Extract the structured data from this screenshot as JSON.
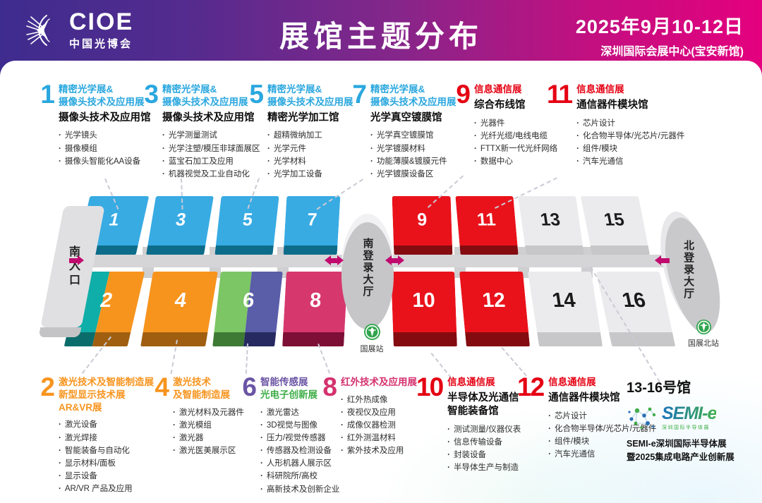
{
  "header": {
    "logo_text": "CIOE",
    "logo_sub": "中国光博会",
    "title": "展馆主题分布",
    "date": "2025年9月10-12日",
    "venue": "深圳国际会展中心(宝安新馆)"
  },
  "map": {
    "south_entrance": "南入口",
    "south_lobby": "南登录大厅",
    "north_lobby": "北登录大厅",
    "metro_south": "国展站",
    "metro_north": "国展北站",
    "halls_top": [
      {
        "num": "1",
        "colors": [
          "#38ABE3"
        ],
        "dark": [
          "#0C6C8A"
        ],
        "text": "#ffffff"
      },
      {
        "num": "3",
        "colors": [
          "#38ABE3"
        ],
        "dark": [
          "#0C6C8A"
        ],
        "text": "#ffffff"
      },
      {
        "num": "5",
        "colors": [
          "#38ABE3"
        ],
        "dark": [
          "#0C6C8A"
        ],
        "text": "#ffffff"
      },
      {
        "num": "7",
        "colors": [
          "#38ABE3"
        ],
        "dark": [
          "#0C6C8A"
        ],
        "text": "#ffffff"
      },
      {
        "num": "9",
        "colors": [
          "#E9121B"
        ],
        "dark": [
          "#840B10"
        ],
        "text": "#ffffff"
      },
      {
        "num": "11",
        "colors": [
          "#E9121B"
        ],
        "dark": [
          "#840B10"
        ],
        "text": "#ffffff"
      },
      {
        "num": "13",
        "colors": [
          "#EBEBED"
        ],
        "dark": [
          "#C7C7C9"
        ],
        "text": "#1b1b1b"
      },
      {
        "num": "15",
        "colors": [
          "#EBEBED"
        ],
        "dark": [
          "#C7C7C9"
        ],
        "text": "#1b1b1b"
      }
    ],
    "halls_bottom": [
      {
        "num": "2",
        "colors": [
          "#0FAEA8",
          "#F7941E"
        ],
        "split": [
          0.44,
          0.56
        ],
        "dark": [
          "#0B6D6B",
          "#A05F10"
        ],
        "text": "#ffffff"
      },
      {
        "num": "4",
        "colors": [
          "#F7941E"
        ],
        "dark": [
          "#A05F10"
        ],
        "text": "#ffffff"
      },
      {
        "num": "6",
        "colors": [
          "#7CC665",
          "#5A5DA8"
        ],
        "split": [
          0.5,
          0.5
        ],
        "dark": [
          "#3E7A33",
          "#262A60"
        ],
        "text": "#ffffff"
      },
      {
        "num": "8",
        "colors": [
          "#D6386E"
        ],
        "dark": [
          "#7D0E35"
        ],
        "text": "#ffffff"
      },
      {
        "num": "10",
        "colors": [
          "#E9121B"
        ],
        "dark": [
          "#840B10"
        ],
        "text": "#ffffff"
      },
      {
        "num": "12",
        "colors": [
          "#E9121B"
        ],
        "dark": [
          "#840B10"
        ],
        "text": "#ffffff"
      },
      {
        "num": "14",
        "colors": [
          "#EBEBED"
        ],
        "dark": [
          "#C7C7C9"
        ],
        "text": "#1b1b1b"
      },
      {
        "num": "16",
        "colors": [
          "#EBEBED"
        ],
        "dark": [
          "#C7C7C9"
        ],
        "text": "#1b1b1b"
      }
    ]
  },
  "annotations_top": [
    {
      "num": "1",
      "color": "#2AA7DF",
      "title_lines": [
        "精密光学展&",
        "摄像头技术及应用展"
      ],
      "hall_name_lines": [
        "摄像头技术及应用馆"
      ],
      "bullets": [
        "光学镜头",
        "摄像模组",
        "摄像头智能化AA设备"
      ]
    },
    {
      "num": "3",
      "color": "#2AA7DF",
      "title_lines": [
        "精密光学展&",
        "摄像头技术及应用展"
      ],
      "hall_name_lines": [
        "摄像头技术及应用馆"
      ],
      "bullets": [
        "光学测量测试",
        "光学注塑/模压非球面展区",
        "蓝宝石加工及应用",
        "机器视觉及工业自动化"
      ]
    },
    {
      "num": "5",
      "color": "#2AA7DF",
      "title_lines": [
        "精密光学展&",
        "摄像头技术及应用展"
      ],
      "hall_name_lines": [
        "精密光学加工馆"
      ],
      "bullets": [
        "超精微纳加工",
        "光学元件",
        "光学材料",
        "光学加工设备"
      ]
    },
    {
      "num": "7",
      "color": "#2AA7DF",
      "title_lines": [
        "精密光学展&",
        "摄像头技术及应用展"
      ],
      "hall_name_lines": [
        "光学真空镀膜馆"
      ],
      "bullets": [
        "光学真空镀膜馆",
        "光学镀膜材料",
        "功能薄膜&镀膜元件",
        "光学镀膜设备区"
      ]
    },
    {
      "num": "9",
      "color": "#E50113",
      "title_lines": [
        "信息通信展"
      ],
      "hall_name_lines": [
        "综合布线馆"
      ],
      "bullets": [
        "光器件",
        "光纤光缆/电线电缆",
        "FTTX新一代光纤网络",
        "数据中心"
      ]
    },
    {
      "num": "11",
      "color": "#E50113",
      "title_lines": [
        "信息通信展"
      ],
      "hall_name_lines": [
        "通信器件模块馆"
      ],
      "bullets": [
        "芯片设计",
        "化合物半导体/光芯片/元器件",
        "组件/模块",
        "汽车光通信"
      ]
    }
  ],
  "annotations_bottom": [
    {
      "num": "2",
      "color": "#F7941E",
      "title_lines": [
        "激光技术及智能制造展",
        "新型显示技术展",
        "AR&VR展"
      ],
      "hall_name_lines": [],
      "bullets": [
        "激光设备",
        "激光焊接",
        "智能装备与自动化",
        "显示材料/面板",
        "显示设备",
        "AR/VR 产品及应用"
      ]
    },
    {
      "num": "4",
      "color": "#F7941E",
      "title_lines": [
        "激光技术",
        "及智能制造展"
      ],
      "hall_name_lines": [],
      "bullets": [
        "激光材料及元器件",
        "激光模组",
        "激光器",
        "激光医美展示区"
      ]
    },
    {
      "num": "6",
      "color": "#6B55A4",
      "title_lines": [
        "智能传感展",
        "光电子创新展"
      ],
      "title_colors": [
        "#6B55A4",
        "#3FAE49"
      ],
      "hall_name_lines": [],
      "bullets": [
        "激光雷达",
        "3D视觉与图像",
        "压力/视觉传感器",
        "传感器及检测设备",
        "人形机器人展示区",
        "科研院所/高校",
        "高新技术及创新企业"
      ]
    },
    {
      "num": "8",
      "color": "#D4326E",
      "title_lines": [
        "红外技术及应用展"
      ],
      "hall_name_lines": [],
      "bullets": [
        "红外热成像",
        "夜视仪及应用",
        "成像仪器检测",
        "红外测温材料",
        "紫外技术及应用"
      ]
    },
    {
      "num": "10",
      "color": "#E50113",
      "title_lines": [
        "信息通信展"
      ],
      "hall_name_lines": [
        "半导体及光通信",
        "智能装备馆"
      ],
      "bullets": [
        "测试测量/仪器仪表",
        "信息传输设备",
        "封装设备",
        "半导体生产与制造"
      ]
    },
    {
      "num": "12",
      "color": "#E50113",
      "title_lines": [
        "信息通信展"
      ],
      "hall_name_lines": [
        "通信器件模块馆"
      ],
      "bullets": [
        "芯片设计",
        "化合物半导体/光芯片/元器件",
        "组件/模块",
        "汽车光通信"
      ]
    }
  ],
  "semi": {
    "title": "13-16号馆",
    "brand": "SEMI-e",
    "brand_sub": "深圳国际半导体展",
    "line1": "SEMI-e深圳国际半导体展",
    "line2": "暨2025集成电路产业创新展"
  }
}
